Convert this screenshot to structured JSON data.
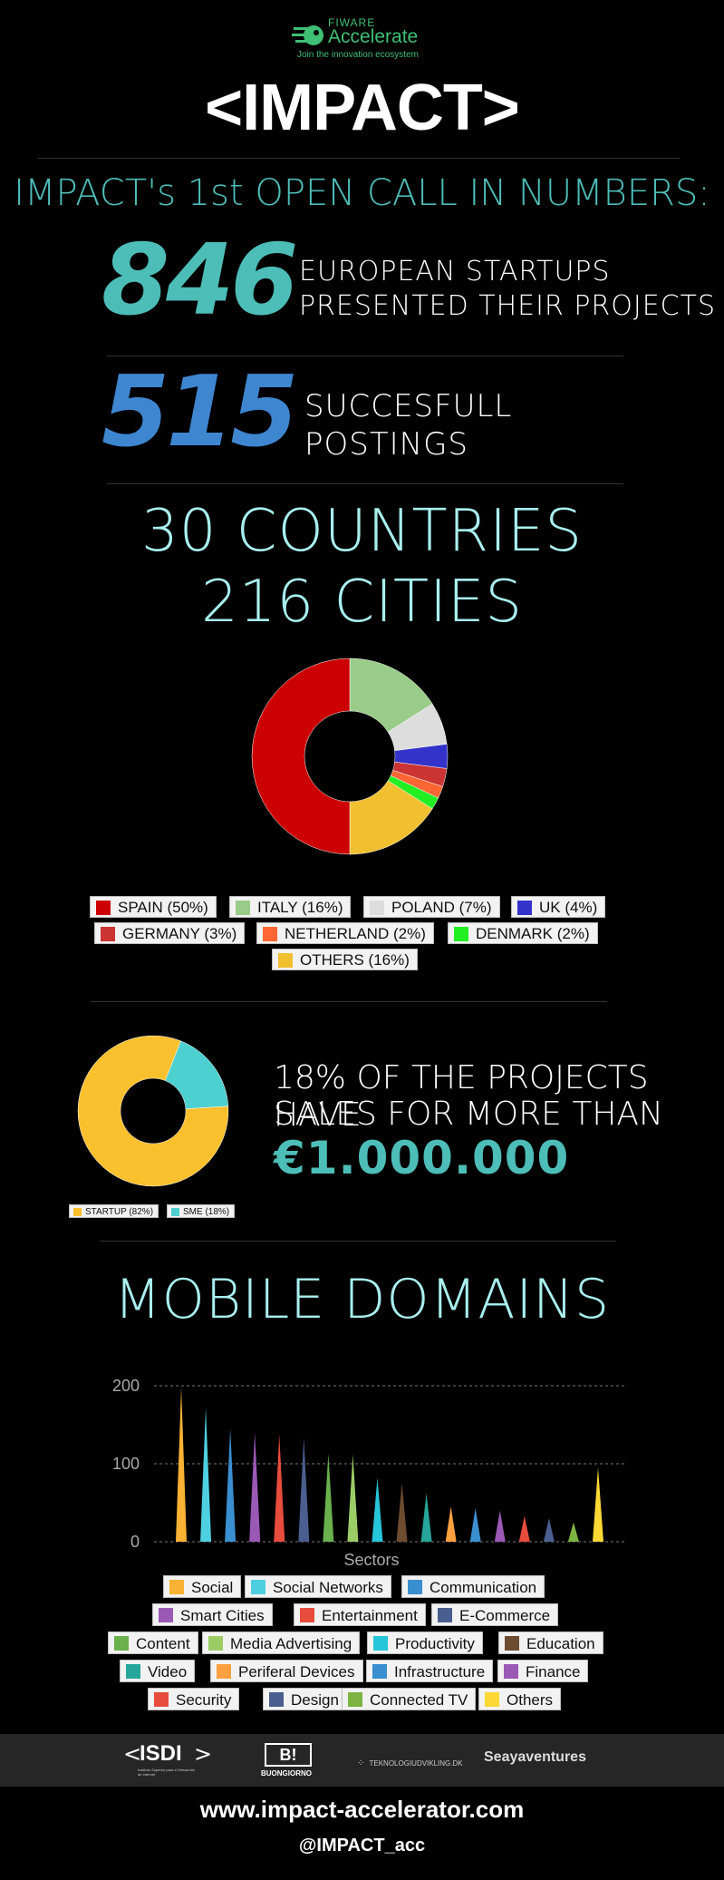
{
  "header": {
    "logo_brand_top": "FIWARE",
    "logo_brand": "Accelerate",
    "logo_tagline": "Join the innovation ecosystem",
    "title": "<IMPACT>"
  },
  "open_call": {
    "heading": "IMPACT's 1st OPEN CALL IN NUMBERS:",
    "stat1_number": "846",
    "stat1_line1": "EUROPEAN STARTUPS",
    "stat1_line2": "PRESENTED THEIR PROJECTS",
    "stat2_number": "515",
    "stat2_line1": "SUCCESFULL",
    "stat2_line2": "POSTINGS",
    "countries": "30 COUNTRIES",
    "cities": "216 CITIES"
  },
  "sales": {
    "line1": "18% OF THE PROJECTS HAVE",
    "line2": "SALES FOR MORE THAN",
    "amount": "€1.000.000"
  },
  "mobile": {
    "heading": "MOBILE DOMAINS"
  },
  "footer": {
    "logo_isdi": "ISDI",
    "logo_isdi_sub": "Instituto Superior para el Desarrollo de Internet",
    "logo_bi": "B!",
    "logo_bi_sub": "BUONGIORNO",
    "logo_tek": "TEKNOLOGIUDVIKLING.DK",
    "logo_seaya": "Seayaventures",
    "website": "www.impact-accelerator.com",
    "handle": "@IMPACT_acc"
  },
  "colors": {
    "teal": "#4dbdb8",
    "blue": "#3f86d0",
    "light_cyan": "#a9f0ef",
    "green_logo": "#3fbf75"
  },
  "chart_data": [
    {
      "type": "pie",
      "name": "countries",
      "categories": [
        "SPAIN (50%)",
        "ITALY (16%)",
        "POLAND (7%)",
        "UK (4%)",
        "GERMANY (3%)",
        "NETHERLAND (2%)",
        "DENMARK (2%)",
        "OTHERS (16%)"
      ],
      "values": [
        50,
        16,
        7,
        4,
        3,
        2,
        2,
        16
      ],
      "colors": [
        "#cc0000",
        "#99cc88",
        "#dddddd",
        "#3333cc",
        "#cc3333",
        "#ff6633",
        "#22ee22",
        "#f0c030"
      ],
      "style": "donut"
    },
    {
      "type": "pie",
      "name": "company_type",
      "categories": [
        "STARTUP (82%)",
        "SME (18%)"
      ],
      "values": [
        82,
        18
      ],
      "colors": [
        "#fbc02d",
        "#4dd0d0"
      ],
      "style": "donut"
    },
    {
      "type": "area",
      "name": "mobile_domains",
      "xlabel": "Sectors",
      "ylabel": "",
      "ylim": [
        0,
        200
      ],
      "yticks": [
        "0",
        "100",
        "200"
      ],
      "categories": [
        "Social",
        "Social Networks",
        "Communication",
        "Smart Cities",
        "Entertainment",
        "E-Commerce",
        "Content",
        "Media Advertising",
        "Productivity",
        "Education",
        "Video",
        "Periferal Devices",
        "Infrastructure",
        "Finance",
        "Security",
        "Design",
        "Connected TV",
        "Others"
      ],
      "values": [
        198,
        172,
        145,
        140,
        138,
        133,
        113,
        112,
        82,
        75,
        62,
        45,
        43,
        40,
        33,
        30,
        25,
        95
      ],
      "colors": [
        "#f9b233",
        "#4ed0e0",
        "#3a8fd0",
        "#9b59b6",
        "#e74c3c",
        "#4a5f8f",
        "#6ab04c",
        "#9ccc65",
        "#26c6da",
        "#6d4c2f",
        "#26a69a",
        "#ffa040",
        "#3a8fd0",
        "#9b59b6",
        "#e74c3c",
        "#4a5f8f",
        "#7cb342",
        "#fdd835"
      ],
      "grid": true
    }
  ]
}
